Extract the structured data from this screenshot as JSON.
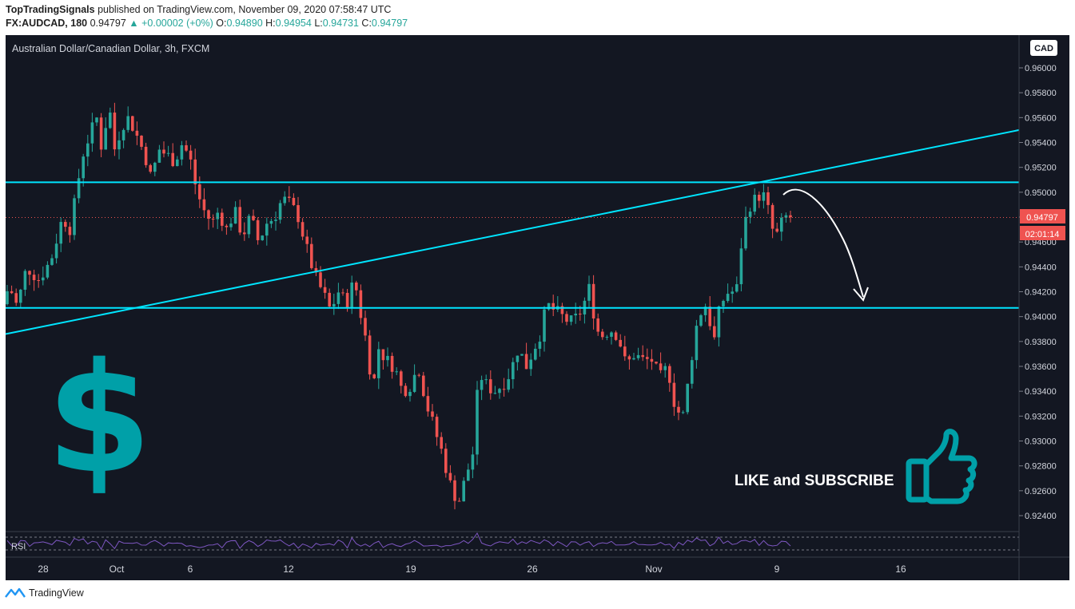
{
  "header": {
    "author": "TopTradingSignals",
    "published_text": "published on TradingView.com, November 09, 2020 07:58:47 UTC",
    "symbol": "FX:AUDCAD, 180",
    "last": "0.94797",
    "change": "+0.00002 (+0%)",
    "o_label": "O:",
    "o": "0.94890",
    "h_label": "H:",
    "h": "0.94954",
    "l_label": "L:",
    "l": "0.94731",
    "c_label": "C:",
    "c": "0.94797"
  },
  "chart_title": "Australian Dollar/Canadian Dollar, 3h, FXCM",
  "currency_button": "CAD",
  "last_price_label": "0.94797",
  "countdown_label": "02:01:14",
  "rsi_label": "RSI",
  "overlay_text": "LIKE and SUBSCRIBE",
  "footer_brand": "TradingView",
  "colors": {
    "background": "#131722",
    "up": "#26a69a",
    "down": "#ef5350",
    "trendline": "#00e5ff",
    "rsi": "#7e57c2",
    "dollar": "#00a0a8"
  },
  "chart_data": {
    "type": "candlestick",
    "title": "Australian Dollar/Canadian Dollar, 3h, FXCM",
    "y_ticks": [
      "0.96000",
      "0.95800",
      "0.95600",
      "0.95400",
      "0.95200",
      "0.95000",
      "0.94800",
      "0.94600",
      "0.94400",
      "0.94200",
      "0.94000",
      "0.93800",
      "0.93600",
      "0.93400",
      "0.93200",
      "0.93000",
      "0.92800",
      "0.92600",
      "0.92400"
    ],
    "x_ticks": [
      "28",
      "Oct",
      "6",
      "12",
      "19",
      "26",
      "Nov",
      "9",
      "16"
    ],
    "ylim": [
      0.9232,
      0.9615
    ],
    "horizontal_levels": [
      0.9508,
      0.9407
    ],
    "trendline": {
      "from": [
        0,
        0.9386
      ],
      "to": [
        1,
        0.955
      ]
    },
    "projection_target": 0.9414,
    "path": [
      [
        0,
        0.941
      ],
      [
        8,
        0.9425
      ],
      [
        18,
        0.9408
      ],
      [
        30,
        0.944
      ],
      [
        45,
        0.943
      ],
      [
        60,
        0.9445
      ],
      [
        75,
        0.948
      ],
      [
        85,
        0.947
      ],
      [
        92,
        0.95
      ],
      [
        100,
        0.953
      ],
      [
        108,
        0.9545
      ],
      [
        118,
        0.956
      ],
      [
        125,
        0.953
      ],
      [
        132,
        0.9575
      ],
      [
        140,
        0.9535
      ],
      [
        150,
        0.9555
      ],
      [
        158,
        0.956
      ],
      [
        168,
        0.9545
      ],
      [
        178,
        0.953
      ],
      [
        186,
        0.951
      ],
      [
        195,
        0.9535
      ],
      [
        205,
        0.953
      ],
      [
        215,
        0.9525
      ],
      [
        225,
        0.954
      ],
      [
        235,
        0.9525
      ],
      [
        243,
        0.95
      ],
      [
        252,
        0.9485
      ],
      [
        262,
        0.9475
      ],
      [
        270,
        0.9485
      ],
      [
        280,
        0.947
      ],
      [
        290,
        0.9485
      ],
      [
        300,
        0.9465
      ],
      [
        310,
        0.948
      ],
      [
        320,
        0.946
      ],
      [
        330,
        0.9475
      ],
      [
        340,
        0.948
      ],
      [
        350,
        0.9495
      ],
      [
        360,
        0.949
      ],
      [
        370,
        0.948
      ],
      [
        380,
        0.9455
      ],
      [
        392,
        0.943
      ],
      [
        400,
        0.942
      ],
      [
        410,
        0.9405
      ],
      [
        420,
        0.942
      ],
      [
        430,
        0.941
      ],
      [
        440,
        0.943
      ],
      [
        450,
        0.9395
      ],
      [
        458,
        0.937
      ],
      [
        462,
        0.9335
      ],
      [
        470,
        0.9375
      ],
      [
        480,
        0.9365
      ],
      [
        490,
        0.936
      ],
      [
        500,
        0.934
      ],
      [
        510,
        0.9345
      ],
      [
        520,
        0.936
      ],
      [
        530,
        0.933
      ],
      [
        540,
        0.931
      ],
      [
        550,
        0.929
      ],
      [
        560,
        0.9265
      ],
      [
        570,
        0.925
      ],
      [
        578,
        0.9268
      ],
      [
        588,
        0.929
      ],
      [
        596,
        0.9355
      ],
      [
        605,
        0.9345
      ],
      [
        615,
        0.934
      ],
      [
        625,
        0.9345
      ],
      [
        635,
        0.9355
      ],
      [
        645,
        0.9375
      ],
      [
        655,
        0.936
      ],
      [
        665,
        0.9375
      ],
      [
        675,
        0.939
      ],
      [
        680,
        0.941
      ],
      [
        690,
        0.9405
      ],
      [
        700,
        0.94
      ],
      [
        710,
        0.9395
      ],
      [
        720,
        0.94
      ],
      [
        730,
        0.9415
      ],
      [
        735,
        0.9425
      ],
      [
        742,
        0.939
      ],
      [
        750,
        0.9385
      ],
      [
        760,
        0.939
      ],
      [
        770,
        0.9385
      ],
      [
        780,
        0.936
      ],
      [
        790,
        0.937
      ],
      [
        800,
        0.9365
      ],
      [
        812,
        0.9365
      ],
      [
        822,
        0.935
      ],
      [
        832,
        0.936
      ],
      [
        842,
        0.9325
      ],
      [
        852,
        0.932
      ],
      [
        860,
        0.936
      ],
      [
        870,
        0.94
      ],
      [
        880,
        0.941
      ],
      [
        890,
        0.938
      ],
      [
        898,
        0.941
      ],
      [
        908,
        0.942
      ],
      [
        918,
        0.942
      ],
      [
        926,
        0.947
      ],
      [
        935,
        0.949
      ],
      [
        943,
        0.9495
      ],
      [
        950,
        0.95
      ],
      [
        956,
        0.949
      ],
      [
        963,
        0.947
      ],
      [
        970,
        0.9465
      ],
      [
        977,
        0.948
      ],
      [
        984,
        0.948
      ]
    ]
  }
}
